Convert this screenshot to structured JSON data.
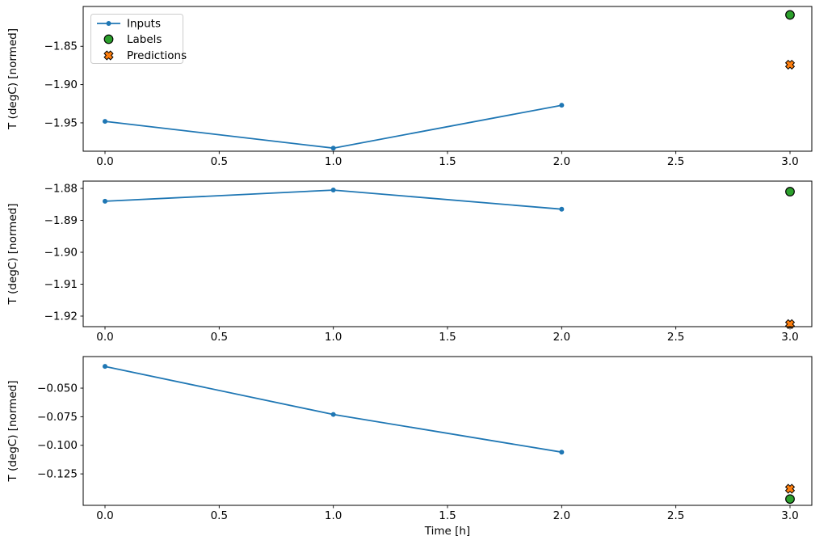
{
  "figure": {
    "background": "#ffffff",
    "xlabel": "Time [h]",
    "ylabel": "T (degC) [normed]",
    "colors": {
      "inputs": "#1f77b4",
      "labels_fill": "#2ca02c",
      "predictions_fill": "#ff7f0e",
      "marker_edge": "#000000",
      "spine": "#000000",
      "text": "#000000",
      "legend_border": "#cccccc",
      "legend_bg": "#ffffff"
    },
    "legend": {
      "position": "upper-left",
      "entries": [
        {
          "label": "Inputs",
          "glyph": "line-with-dot",
          "color": "#1f77b4"
        },
        {
          "label": "Labels",
          "glyph": "circle",
          "color": "#2ca02c"
        },
        {
          "label": "Predictions",
          "glyph": "x-marker",
          "color": "#ff7f0e"
        }
      ]
    }
  },
  "chart_data": [
    {
      "type": "line",
      "subplot": 1,
      "ylabel": "T (degC) [normed]",
      "xlabel": "",
      "grid": false,
      "xlim": [
        -0.0955,
        3.0955
      ],
      "ylim": [
        -1.987,
        -1.798
      ],
      "x_ticks": [
        0.0,
        0.5,
        1.0,
        1.5,
        2.0,
        2.5,
        3.0
      ],
      "x_tick_labels": [
        "0.0",
        "0.5",
        "1.0",
        "1.5",
        "2.0",
        "2.5",
        "3.0"
      ],
      "y_ticks": [
        -1.85,
        -1.9,
        -1.95
      ],
      "y_tick_labels": [
        "−1.85",
        "−1.90",
        "−1.95"
      ],
      "series": [
        {
          "name": "Inputs",
          "kind": "line",
          "x": [
            0,
            1,
            2
          ],
          "y": [
            -1.948,
            -1.983,
            -1.927
          ]
        },
        {
          "name": "Labels",
          "kind": "circle",
          "x": [
            3
          ],
          "y": [
            -1.809
          ]
        },
        {
          "name": "Predictions",
          "kind": "x",
          "x": [
            3
          ],
          "y": [
            -1.874
          ]
        }
      ]
    },
    {
      "type": "line",
      "subplot": 2,
      "ylabel": "T (degC) [normed]",
      "xlabel": "",
      "grid": false,
      "xlim": [
        -0.0955,
        3.0955
      ],
      "ylim": [
        -1.9233,
        -1.8777
      ],
      "x_ticks": [
        0.0,
        0.5,
        1.0,
        1.5,
        2.0,
        2.5,
        3.0
      ],
      "x_tick_labels": [
        "0.0",
        "0.5",
        "1.0",
        "1.5",
        "2.0",
        "2.5",
        "3.0"
      ],
      "y_ticks": [
        -1.88,
        -1.89,
        -1.9,
        -1.91,
        -1.92
      ],
      "y_tick_labels": [
        "−1.88",
        "−1.89",
        "−1.90",
        "−1.91",
        "−1.92"
      ],
      "series": [
        {
          "name": "Inputs",
          "kind": "line",
          "x": [
            0,
            1,
            2
          ],
          "y": [
            -1.884,
            -1.8805,
            -1.8865
          ]
        },
        {
          "name": "Labels",
          "kind": "circle",
          "x": [
            3
          ],
          "y": [
            -1.881
          ]
        },
        {
          "name": "Predictions",
          "kind": "x",
          "x": [
            3
          ],
          "y": [
            -1.9225
          ]
        }
      ]
    },
    {
      "type": "line",
      "subplot": 3,
      "ylabel": "T (degC) [normed]",
      "xlabel": "Time [h]",
      "grid": false,
      "xlim": [
        -0.0955,
        3.0955
      ],
      "ylim": [
        -0.1525,
        -0.0224
      ],
      "x_ticks": [
        0.0,
        0.5,
        1.0,
        1.5,
        2.0,
        2.5,
        3.0
      ],
      "x_tick_labels": [
        "0.0",
        "0.5",
        "1.0",
        "1.5",
        "2.0",
        "2.5",
        "3.0"
      ],
      "y_ticks": [
        -0.05,
        -0.075,
        -0.1,
        -0.125
      ],
      "y_tick_labels": [
        "−0.050",
        "−0.075",
        "−0.100",
        "−0.125"
      ],
      "series": [
        {
          "name": "Inputs",
          "kind": "line",
          "x": [
            0,
            1,
            2
          ],
          "y": [
            -0.031,
            -0.073,
            -0.106
          ]
        },
        {
          "name": "Labels",
          "kind": "circle",
          "x": [
            3
          ],
          "y": [
            -0.147
          ]
        },
        {
          "name": "Predictions",
          "kind": "x",
          "x": [
            3
          ],
          "y": [
            -0.138
          ]
        }
      ]
    }
  ]
}
